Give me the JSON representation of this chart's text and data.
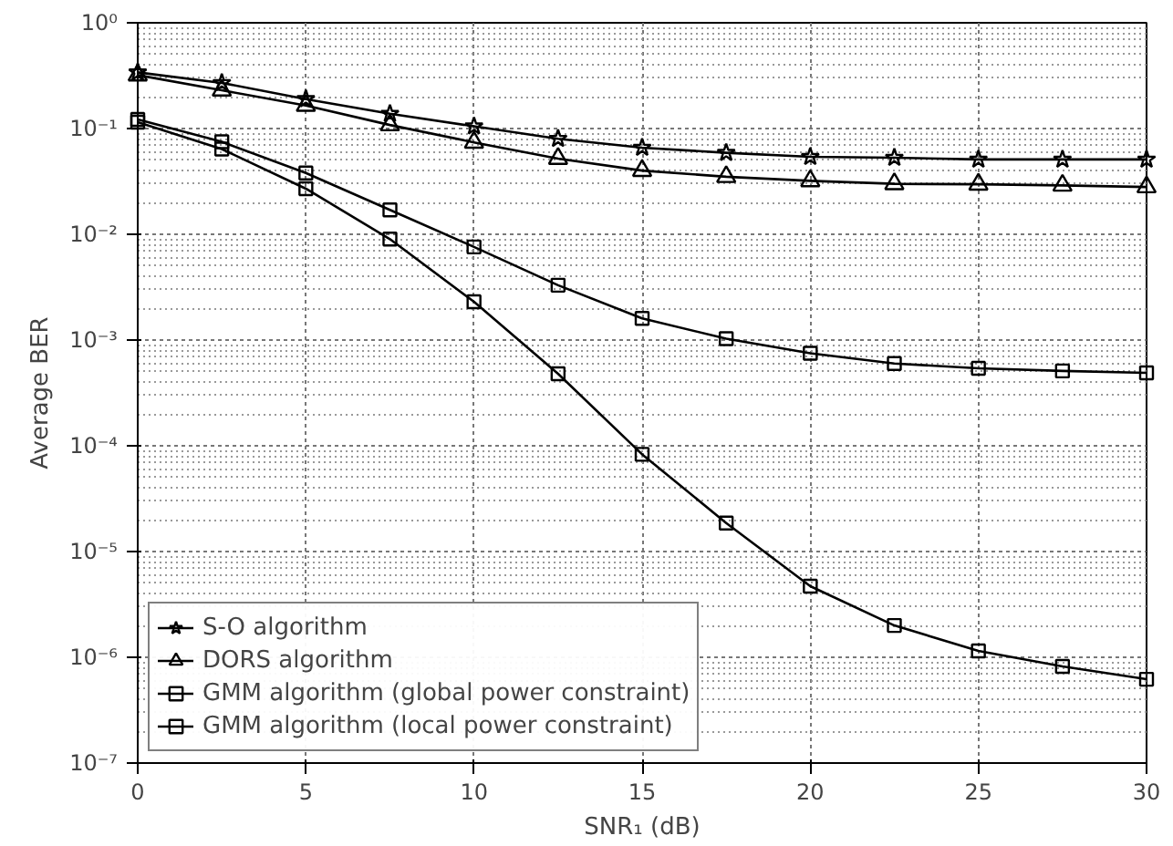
{
  "chart_data": {
    "type": "line",
    "xlabel": "SNR₁ (dB)",
    "ylabel": "Average BER",
    "x": [
      0,
      2.5,
      5,
      7.5,
      10,
      12.5,
      15,
      17.5,
      20,
      22.5,
      25,
      27.5,
      30
    ],
    "series": [
      {
        "name": "S-O algorithm",
        "color": "#000000",
        "marker": "star",
        "values": [
          0.34,
          0.27,
          0.19,
          0.138,
          0.105,
          0.08,
          0.066,
          0.059,
          0.054,
          0.053,
          0.051,
          0.051,
          0.051
        ]
      },
      {
        "name": "DORS algorithm",
        "color": "#000000",
        "marker": "triangle",
        "values": [
          0.32,
          0.23,
          0.165,
          0.108,
          0.074,
          0.052,
          0.04,
          0.035,
          0.032,
          0.03,
          0.0297,
          0.029,
          0.028
        ]
      },
      {
        "name": "GMM algorithm (global power constraint)",
        "color": "#000000",
        "marker": "square",
        "values": [
          0.122,
          0.075,
          0.038,
          0.017,
          0.0076,
          0.0033,
          0.0016,
          0.00103,
          0.00075,
          0.0006,
          0.00054,
          0.00051,
          0.00049
        ]
      },
      {
        "name": "GMM algorithm (local power constraint)",
        "color": "#000000",
        "marker": "square",
        "values": [
          0.115,
          0.064,
          0.027,
          0.009,
          0.0023,
          0.00048,
          8.3e-05,
          1.86e-05,
          4.7e-06,
          2e-06,
          1.15e-06,
          8.2e-07,
          6.2e-07
        ]
      }
    ],
    "xlim": [
      0,
      30
    ],
    "xticks": [
      0,
      5,
      10,
      15,
      20,
      25,
      30
    ],
    "ylim": [
      1e-07,
      1
    ],
    "yticks": [
      {
        "value": 1e-07,
        "label": "10⁻⁷"
      },
      {
        "value": 1e-06,
        "label": "10⁻⁶"
      },
      {
        "value": 1e-05,
        "label": "10⁻⁵"
      },
      {
        "value": 0.0001,
        "label": "10⁻⁴"
      },
      {
        "value": 0.001,
        "label": "10⁻³"
      },
      {
        "value": 0.01,
        "label": "10⁻²"
      },
      {
        "value": 0.1,
        "label": "10⁻¹"
      },
      {
        "value": 1,
        "label": "10⁰"
      }
    ],
    "log": true,
    "grid": true,
    "legend": "bottom left",
    "line_style": "solid"
  }
}
